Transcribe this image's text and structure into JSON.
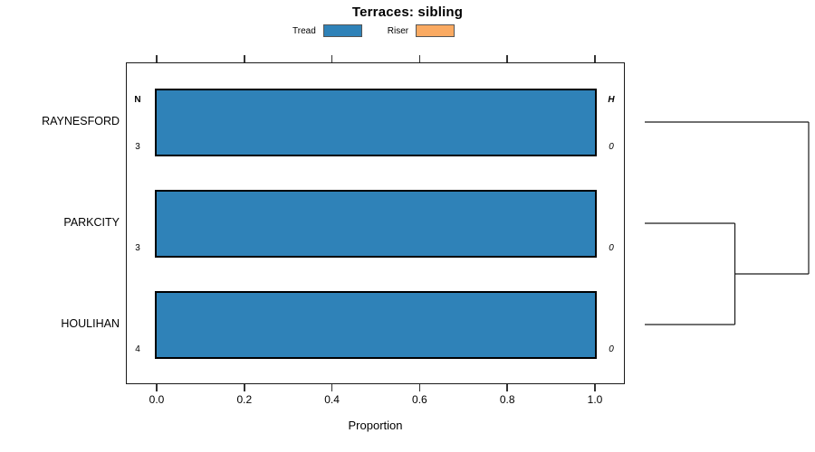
{
  "figure": {
    "title": "Terraces: sibling",
    "xlabel": "Proportion"
  },
  "legend": {
    "items": [
      {
        "label": "Tread",
        "color": "#2F82B8"
      },
      {
        "label": "Riser",
        "color": "#FAAA62"
      }
    ]
  },
  "chart_data": {
    "type": "bar",
    "orientation": "horizontal-stacked",
    "title": "Terraces: sibling",
    "xlabel": "Proportion",
    "xlim": [
      0,
      1
    ],
    "x_tick_labels": [
      "0.0",
      "0.2",
      "0.4",
      "0.6",
      "0.8",
      "1.0"
    ],
    "grid": false,
    "legend_position": "top",
    "categories": [
      "RAYNESFORD",
      "PARKCITY",
      "HOULIHAN"
    ],
    "series": [
      {
        "name": "Tread",
        "color": "#2F82B8",
        "values": [
          1.0,
          1.0,
          1.0
        ]
      },
      {
        "name": "Riser",
        "color": "#FAAA62",
        "values": [
          0.0,
          0.0,
          0.0
        ]
      }
    ],
    "row_annotations": {
      "left_header": "N",
      "left_values": [
        "3",
        "3",
        "4"
      ],
      "right_header": "H",
      "right_values": [
        "0",
        "0",
        "0"
      ]
    },
    "dendrogram": {
      "leaves": [
        "RAYNESFORD",
        "PARKCITY",
        "HOULIHAN"
      ],
      "merges": [
        {
          "children": [
            "PARKCITY",
            "HOULIHAN"
          ],
          "height": 0.55
        },
        {
          "children": [
            "RAYNESFORD",
            "@0"
          ],
          "height": 1.0
        }
      ]
    }
  }
}
